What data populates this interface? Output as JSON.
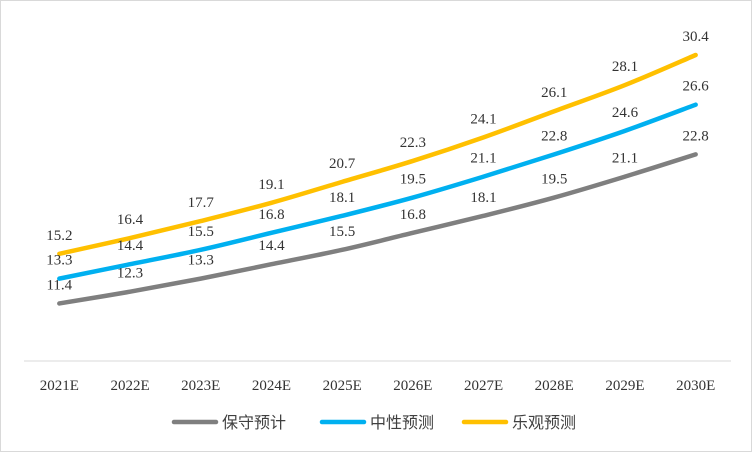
{
  "chart_data": {
    "type": "line",
    "categories": [
      "2021E",
      "2022E",
      "2023E",
      "2024E",
      "2025E",
      "2026E",
      "2027E",
      "2028E",
      "2029E",
      "2030E"
    ],
    "series": [
      {
        "name": "保守预计",
        "color": "#7f7f7f",
        "values": [
          11.4,
          12.3,
          13.3,
          14.4,
          15.5,
          16.8,
          18.1,
          19.5,
          21.1,
          22.8
        ]
      },
      {
        "name": "中性预测",
        "color": "#00b0f0",
        "values": [
          13.3,
          14.4,
          15.5,
          16.8,
          18.1,
          19.5,
          21.1,
          22.8,
          24.6,
          26.6
        ]
      },
      {
        "name": "乐观预测",
        "color": "#ffc000",
        "values": [
          15.2,
          16.4,
          17.7,
          19.1,
          20.7,
          22.3,
          24.1,
          26.1,
          28.1,
          30.4
        ]
      }
    ],
    "title": "",
    "xlabel": "",
    "ylabel": "",
    "ylim": [
      7,
      33
    ],
    "grid": false,
    "legend": "bottom",
    "data_labels": true
  }
}
